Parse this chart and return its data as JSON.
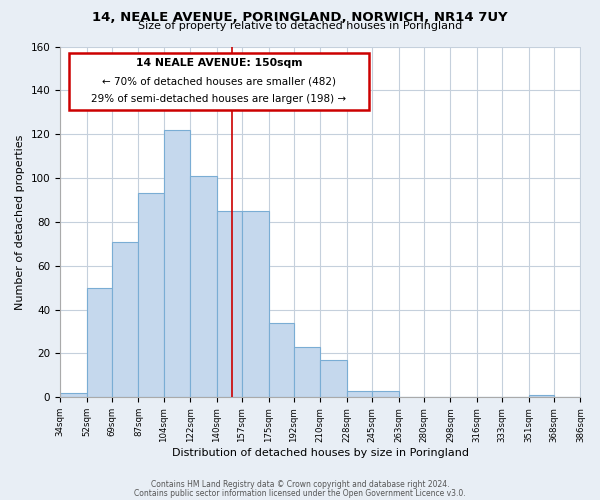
{
  "title": "14, NEALE AVENUE, PORINGLAND, NORWICH, NR14 7UY",
  "subtitle": "Size of property relative to detached houses in Poringland",
  "xlabel": "Distribution of detached houses by size in Poringland",
  "ylabel": "Number of detached properties",
  "bar_color": "#c5d8ed",
  "bar_edge_color": "#7aadd4",
  "bins": [
    34,
    52,
    69,
    87,
    104,
    122,
    140,
    157,
    175,
    192,
    210,
    228,
    245,
    263,
    280,
    298,
    316,
    333,
    351,
    368,
    386
  ],
  "bin_labels": [
    "34sqm",
    "52sqm",
    "69sqm",
    "87sqm",
    "104sqm",
    "122sqm",
    "140sqm",
    "157sqm",
    "175sqm",
    "192sqm",
    "210sqm",
    "228sqm",
    "245sqm",
    "263sqm",
    "280sqm",
    "298sqm",
    "316sqm",
    "333sqm",
    "351sqm",
    "368sqm",
    "386sqm"
  ],
  "counts": [
    2,
    50,
    71,
    93,
    122,
    101,
    85,
    85,
    34,
    23,
    17,
    3,
    3,
    0,
    0,
    0,
    0,
    0,
    1,
    0,
    0
  ],
  "ylim": [
    0,
    160
  ],
  "yticks": [
    0,
    20,
    40,
    60,
    80,
    100,
    120,
    140,
    160
  ],
  "property_size": 150,
  "annotation_line1": "14 NEALE AVENUE: 150sqm",
  "annotation_line2": "← 70% of detached houses are smaller (482)",
  "annotation_line3": "29% of semi-detached houses are larger (198) →",
  "annotation_box_facecolor": "#ffffff",
  "annotation_box_edgecolor": "#cc0000",
  "red_line_color": "#cc0000",
  "footer_line1": "Contains HM Land Registry data © Crown copyright and database right 2024.",
  "footer_line2": "Contains public sector information licensed under the Open Government Licence v3.0.",
  "bg_color": "#e8eef5",
  "plot_bg_color": "#ffffff",
  "grid_color": "#c5d0dc"
}
